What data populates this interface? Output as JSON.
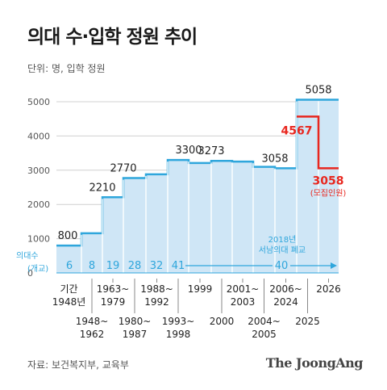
{
  "title": "의대 수·입학 정원 추이",
  "unit_label": "단위: 명, 입학 정원",
  "source": "자료: 보건복지부, 교육부",
  "brand": "The JoongAng",
  "colors": {
    "area_fill": "#cfe6f6",
    "area_line": "#2fa6dc",
    "red": "#e8271f",
    "axis_text": "#555555",
    "grid": "#d0d0d0",
    "school_count_text": "#2fa6dc"
  },
  "chart_data": {
    "type": "area",
    "title": "의대 수·입학 정원 추이",
    "ylabel": "단위: 명, 입학 정원",
    "ylim": [
      0,
      5000
    ],
    "yticks": [
      "0",
      "1000",
      "2000",
      "3000",
      "4000",
      "5000"
    ],
    "series": [
      {
        "name": "입학 정원",
        "values": [
          800,
          1160,
          2210,
          2770,
          2880,
          3300,
          3210,
          3273,
          3253,
          3097,
          3058,
          5058,
          5058
        ]
      }
    ],
    "x_periods": [
      {
        "label": "기간\n1948년"
      },
      {
        "label": "1948~\n1962"
      },
      {
        "label": "1963~\n1979"
      },
      {
        "label": "1980~\n1987"
      },
      {
        "label": "1988~\n1992"
      },
      {
        "label": "1993~\n1998"
      },
      {
        "label": "1999"
      },
      {
        "label": "2000"
      },
      {
        "label": "2001~\n2003"
      },
      {
        "label": "2004~\n2005"
      },
      {
        "label": "2006~\n2024"
      },
      {
        "label": "2025"
      },
      {
        "label": "2026"
      }
    ],
    "data_labels": [
      {
        "text": "800",
        "value": 800
      },
      {
        "text": "2210",
        "value": 2210
      },
      {
        "text": "2770",
        "value": 2770
      },
      {
        "text": "3300",
        "value": 3300
      },
      {
        "text": "3273",
        "value": 3273
      },
      {
        "text": "3058",
        "value": 3058
      },
      {
        "text": "5058",
        "value": 5058
      }
    ],
    "recruitment": {
      "values": [
        4567,
        3058
      ],
      "labels": [
        "4567",
        "3058"
      ],
      "note": "(모집인원)"
    },
    "school_count_label": "의대수",
    "school_count_sub": "(개교)",
    "school_counts": [
      "6",
      "8",
      "19",
      "28",
      "32",
      "41",
      "40"
    ],
    "annotation": {
      "year": "2018년",
      "text": "서남의대 폐교"
    }
  }
}
